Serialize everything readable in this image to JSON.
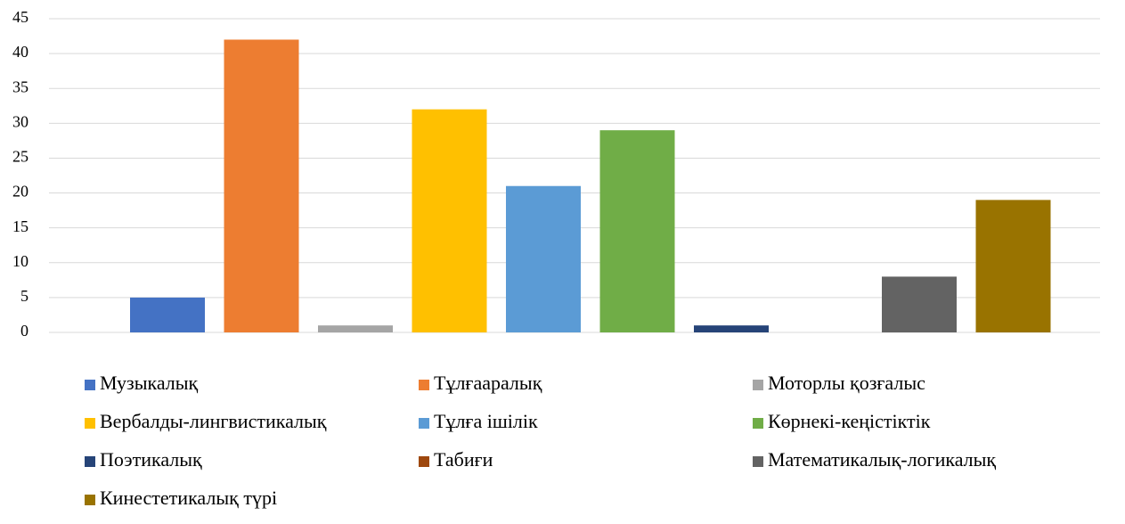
{
  "chart_data": {
    "type": "bar",
    "categories": [
      null
    ],
    "series": [
      {
        "name": "Музыкалық",
        "color": "#4472c4",
        "values": [
          5
        ]
      },
      {
        "name": "Тұлғааралық",
        "color": "#ed7d31",
        "values": [
          42
        ]
      },
      {
        "name": "Моторлы қозғалыс",
        "color": "#a5a5a5",
        "values": [
          1
        ]
      },
      {
        "name": "Вербалды-лингвистикалық",
        "color": "#ffc000",
        "values": [
          32
        ]
      },
      {
        "name": "Тұлға ішілік",
        "color": "#5b9bd5",
        "values": [
          21
        ]
      },
      {
        "name": "Көрнекі-кеңістіктік",
        "color": "#70ad47",
        "values": [
          29
        ]
      },
      {
        "name": "Поэтикалық",
        "color": "#264478",
        "values": [
          1
        ]
      },
      {
        "name": "Табиғи",
        "color": "#9e480e",
        "values": [
          0
        ]
      },
      {
        "name": "Математикалық-логикалық",
        "color": "#636363",
        "values": [
          8
        ]
      },
      {
        "name": "Кинестетикалық түрі",
        "color": "#997300",
        "values": [
          19
        ]
      }
    ],
    "ylim": [
      0,
      45
    ],
    "yticks": [
      0,
      5,
      10,
      15,
      20,
      25,
      30,
      35,
      40,
      45
    ],
    "grid": true,
    "legend": "bottom"
  }
}
